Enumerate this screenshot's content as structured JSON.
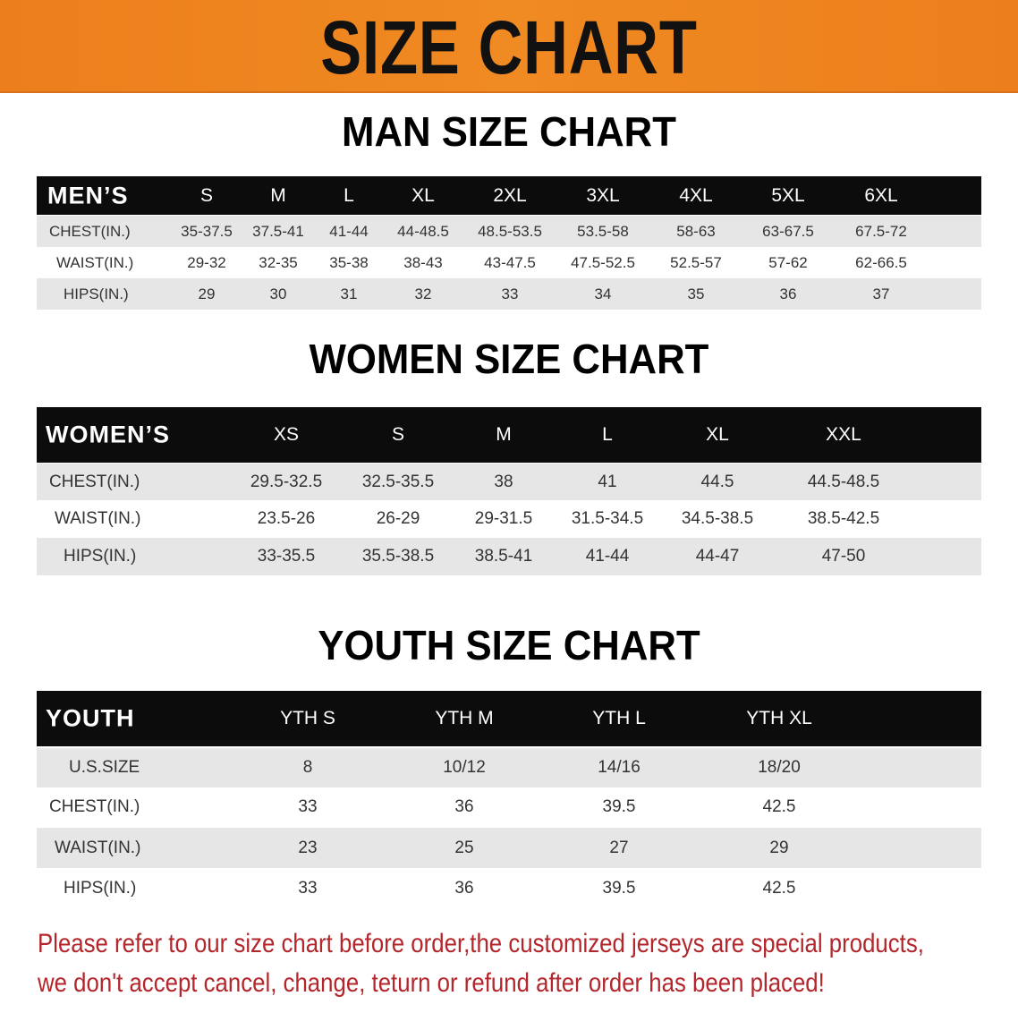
{
  "title": "SIZE CHART",
  "colors": {
    "banner": "#ec7f1c",
    "header_row": "#0c0c0c",
    "stripe": "#e6e6e6",
    "note": "#b3262b"
  },
  "men": {
    "heading": "MAN SIZE CHART",
    "header": [
      "MEN’S",
      "S",
      "M",
      "L",
      "XL",
      "2XL",
      "3XL",
      "4XL",
      "5XL",
      "6XL"
    ],
    "rows": [
      [
        "CHEST(IN.)",
        "35-37.5",
        "37.5-41",
        "41-44",
        "44-48.5",
        "48.5-53.5",
        "53.5-58",
        "58-63",
        "63-67.5",
        "67.5-72"
      ],
      [
        "WAIST(IN.)",
        "29-32",
        "32-35",
        "35-38",
        "38-43",
        "43-47.5",
        "47.5-52.5",
        "52.5-57",
        "57-62",
        "62-66.5"
      ],
      [
        "HIPS(IN.)",
        "29",
        "30",
        "31",
        "32",
        "33",
        "34",
        "35",
        "36",
        "37"
      ]
    ]
  },
  "women": {
    "heading": "WOMEN SIZE CHART",
    "header": [
      "WOMEN’S",
      "XS",
      "S",
      "M",
      "L",
      "XL",
      "XXL"
    ],
    "rows": [
      [
        "CHEST(IN.)",
        "29.5-32.5",
        "32.5-35.5",
        "38",
        "41",
        "44.5",
        "44.5-48.5"
      ],
      [
        "WAIST(IN.)",
        "23.5-26",
        "26-29",
        "29-31.5",
        "31.5-34.5",
        "34.5-38.5",
        "38.5-42.5"
      ],
      [
        "HIPS(IN.)",
        "33-35.5",
        "35.5-38.5",
        "38.5-41",
        "41-44",
        "44-47",
        "47-50"
      ]
    ]
  },
  "youth": {
    "heading": "YOUTH SIZE CHART",
    "header": [
      "YOUTH",
      "YTH S",
      "YTH M",
      "YTH L",
      "YTH XL"
    ],
    "rows": [
      [
        "U.S.SIZE",
        "8",
        "10/12",
        "14/16",
        "18/20"
      ],
      [
        "CHEST(IN.)",
        "33",
        "36",
        "39.5",
        "42.5"
      ],
      [
        "WAIST(IN.)",
        "23",
        "25",
        "27",
        "29"
      ],
      [
        "HIPS(IN.)",
        "33",
        "36",
        "39.5",
        "42.5"
      ]
    ]
  },
  "note": {
    "line1": "Please refer to our size chart before order,the customized jerseys are special products,",
    "line2": "we don't accept cancel, change, teturn or refund after order has been placed!"
  }
}
